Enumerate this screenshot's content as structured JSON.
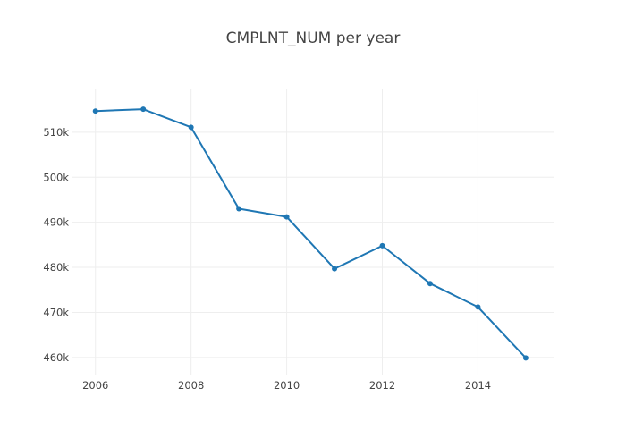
{
  "chart_data": {
    "type": "line",
    "title": "CMPLNT_NUM per year",
    "xlabel": "",
    "ylabel": "",
    "x": [
      2006,
      2007,
      2008,
      2009,
      2010,
      2011,
      2012,
      2013,
      2014,
      2015
    ],
    "series": [
      {
        "values": [
          514700,
          515100,
          511100,
          493000,
          491200,
          479700,
          484800,
          476400,
          471200,
          459900
        ]
      }
    ],
    "xlim": [
      2005.5,
      2015.6
    ],
    "ylim": [
      456000,
      519500
    ],
    "x_ticks": [
      2006,
      2008,
      2010,
      2012,
      2014
    ],
    "x_tick_labels": [
      "2006",
      "2008",
      "2010",
      "2012",
      "2014"
    ],
    "y_ticks": [
      460000,
      470000,
      480000,
      490000,
      500000,
      510000
    ],
    "y_tick_labels": [
      "460k",
      "470k",
      "480k",
      "490k",
      "500k",
      "510k"
    ],
    "grid": true,
    "legend": "none",
    "colors": {
      "line": "#1f77b4",
      "grid": "#eeeeee",
      "text": "#444444"
    }
  }
}
